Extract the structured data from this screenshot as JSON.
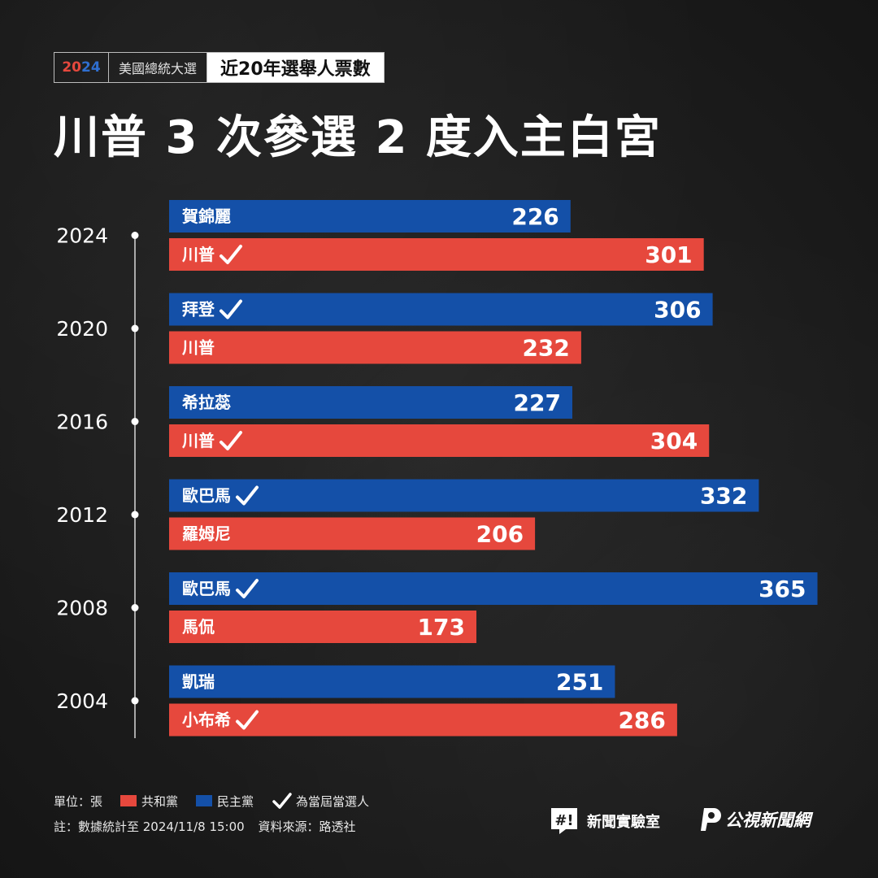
{
  "header": {
    "year_part1": "20",
    "year_part2": "24",
    "topic": "美國總統大選",
    "subtitle": "近20年選舉人票數",
    "headline": "川普 3 次參選 2 度入主白宮"
  },
  "colors": {
    "republican": "#e6483d",
    "democrat": "#1450a8",
    "background": "#1e1e1e"
  },
  "chart_data": {
    "type": "bar",
    "orientation": "horizontal",
    "xlim": [
      0,
      400
    ],
    "grid": false,
    "groups": [
      {
        "year": "2024",
        "bars": [
          {
            "party": "democrat",
            "candidate": "賀錦麗",
            "value": 226,
            "winner": false
          },
          {
            "party": "republican",
            "candidate": "川普",
            "value": 301,
            "winner": true
          }
        ]
      },
      {
        "year": "2020",
        "bars": [
          {
            "party": "democrat",
            "candidate": "拜登",
            "value": 306,
            "winner": true
          },
          {
            "party": "republican",
            "candidate": "川普",
            "value": 232,
            "winner": false
          }
        ]
      },
      {
        "year": "2016",
        "bars": [
          {
            "party": "democrat",
            "candidate": "希拉蕊",
            "value": 227,
            "winner": false
          },
          {
            "party": "republican",
            "candidate": "川普",
            "value": 304,
            "winner": true
          }
        ]
      },
      {
        "year": "2012",
        "bars": [
          {
            "party": "democrat",
            "candidate": "歐巴馬",
            "value": 332,
            "winner": true
          },
          {
            "party": "republican",
            "candidate": "羅姆尼",
            "value": 206,
            "winner": false
          }
        ]
      },
      {
        "year": "2008",
        "bars": [
          {
            "party": "democrat",
            "candidate": "歐巴馬",
            "value": 365,
            "winner": true
          },
          {
            "party": "republican",
            "candidate": "馬侃",
            "value": 173,
            "winner": false
          }
        ]
      },
      {
        "year": "2004",
        "bars": [
          {
            "party": "democrat",
            "candidate": "凱瑞",
            "value": 251,
            "winner": false
          },
          {
            "party": "republican",
            "candidate": "小布希",
            "value": 286,
            "winner": true
          }
        ]
      }
    ]
  },
  "legend": {
    "unit": "單位：張",
    "republican": "共和黨",
    "democrat": "民主黨",
    "winner": "為當屆當選人"
  },
  "footer": {
    "note": "註：數據統計至 2024/11/8 15:00",
    "source": "資料來源：路透社"
  },
  "logos": {
    "newslab": "新聞實驗室",
    "pts": "公視新聞網"
  }
}
